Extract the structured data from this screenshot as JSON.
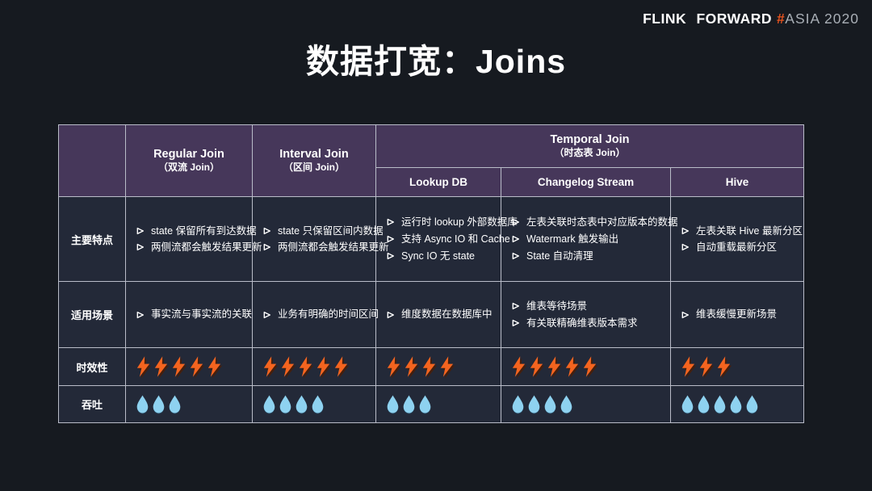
{
  "logo": {
    "brand": "FLINK FORWARD",
    "hash": "#",
    "event": "ASIA 2020"
  },
  "title": "数据打宽：Joins",
  "table": {
    "corner_label": "",
    "header": {
      "regular": {
        "title": "Regular Join",
        "subtitle": "（双流 Join）"
      },
      "interval": {
        "title": "Interval Join",
        "subtitle": "（区间 Join）"
      },
      "temporal": {
        "title": "Temporal Join",
        "subtitle": "（时态表 Join）"
      },
      "temporal_subcolumns": [
        "Lookup DB",
        "Changelog Stream",
        "Hive"
      ]
    },
    "rows": [
      {
        "label": "主要特点",
        "type": "bullets",
        "cells": [
          [
            "state 保留所有到达数据",
            "两侧流都会触发结果更新"
          ],
          [
            "state 只保留区间内数据",
            "两侧流都会触发结果更新"
          ],
          [
            "运行时 lookup 外部数据库",
            "支持 Async IO 和 Cache",
            "Sync IO 无 state"
          ],
          [
            "左表关联时态表中对应版本的数据",
            "Watermark 触发输出",
            "State 自动清理"
          ],
          [
            "左表关联 Hive 最新分区",
            "自动重载最新分区"
          ]
        ]
      },
      {
        "label": "适用场景",
        "type": "bullets",
        "cells": [
          [
            "事实流与事实流的关联"
          ],
          [
            "业务有明确的时间区间"
          ],
          [
            "维度数据在数据库中"
          ],
          [
            "维表等待场景",
            "有关联精确维表版本需求"
          ],
          [
            "维表缓慢更新场景"
          ]
        ]
      },
      {
        "label": "时效性",
        "type": "bolts",
        "cells": [
          5,
          5,
          4,
          5,
          3
        ]
      },
      {
        "label": "吞吐",
        "type": "drops",
        "cells": [
          3,
          4,
          3,
          4,
          5
        ]
      }
    ],
    "icons": {
      "bullet": "arrowhead-right-icon",
      "bolts": "lightning-icon",
      "drops": "water-drop-icon"
    }
  },
  "colors": {
    "background": "#161a20",
    "header_bg": "#46375a",
    "cell_bg": "#232938",
    "border": "#b9bcc8",
    "accent_orange": "#f4641f",
    "drop_blue": "#8ed2f0",
    "logo_gray": "#a9afb6"
  }
}
